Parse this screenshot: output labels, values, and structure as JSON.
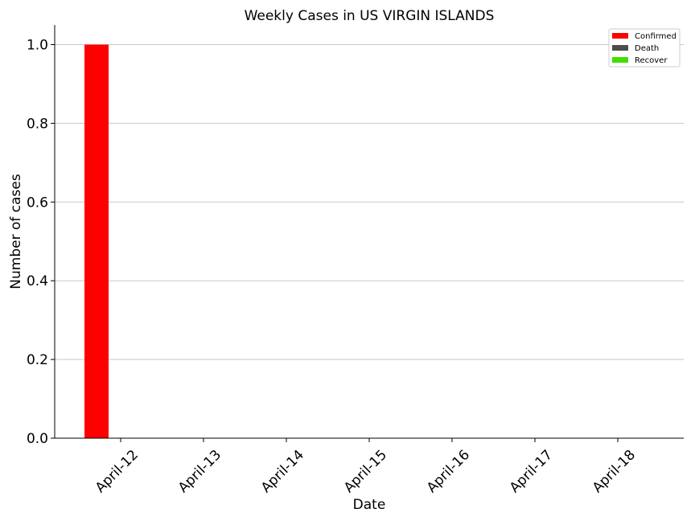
{
  "chart_data": {
    "type": "bar",
    "title": "Weekly Cases in US VIRGIN ISLANDS",
    "xlabel": "Date",
    "ylabel": "Number of cases",
    "categories": [
      "April-12",
      "April-13",
      "April-14",
      "April-15",
      "April-16",
      "April-17",
      "April-18"
    ],
    "series": [
      {
        "name": "Confirmed",
        "values": [
          1,
          0,
          0,
          0,
          0,
          0,
          0
        ],
        "color": "#ff0000"
      },
      {
        "name": "Death",
        "values": [
          0,
          0,
          0,
          0,
          0,
          0,
          0
        ],
        "color": "#4d4d4d"
      },
      {
        "name": "Recover",
        "values": [
          0,
          0,
          0,
          0,
          0,
          0,
          0
        ],
        "color": "#44dd00"
      }
    ],
    "ylim": [
      0,
      1.05
    ],
    "yticks": [
      "0.0",
      "0.2",
      "0.4",
      "0.6",
      "0.8",
      "1.0"
    ],
    "grid": "horizontal",
    "legend_position": "top-right"
  }
}
